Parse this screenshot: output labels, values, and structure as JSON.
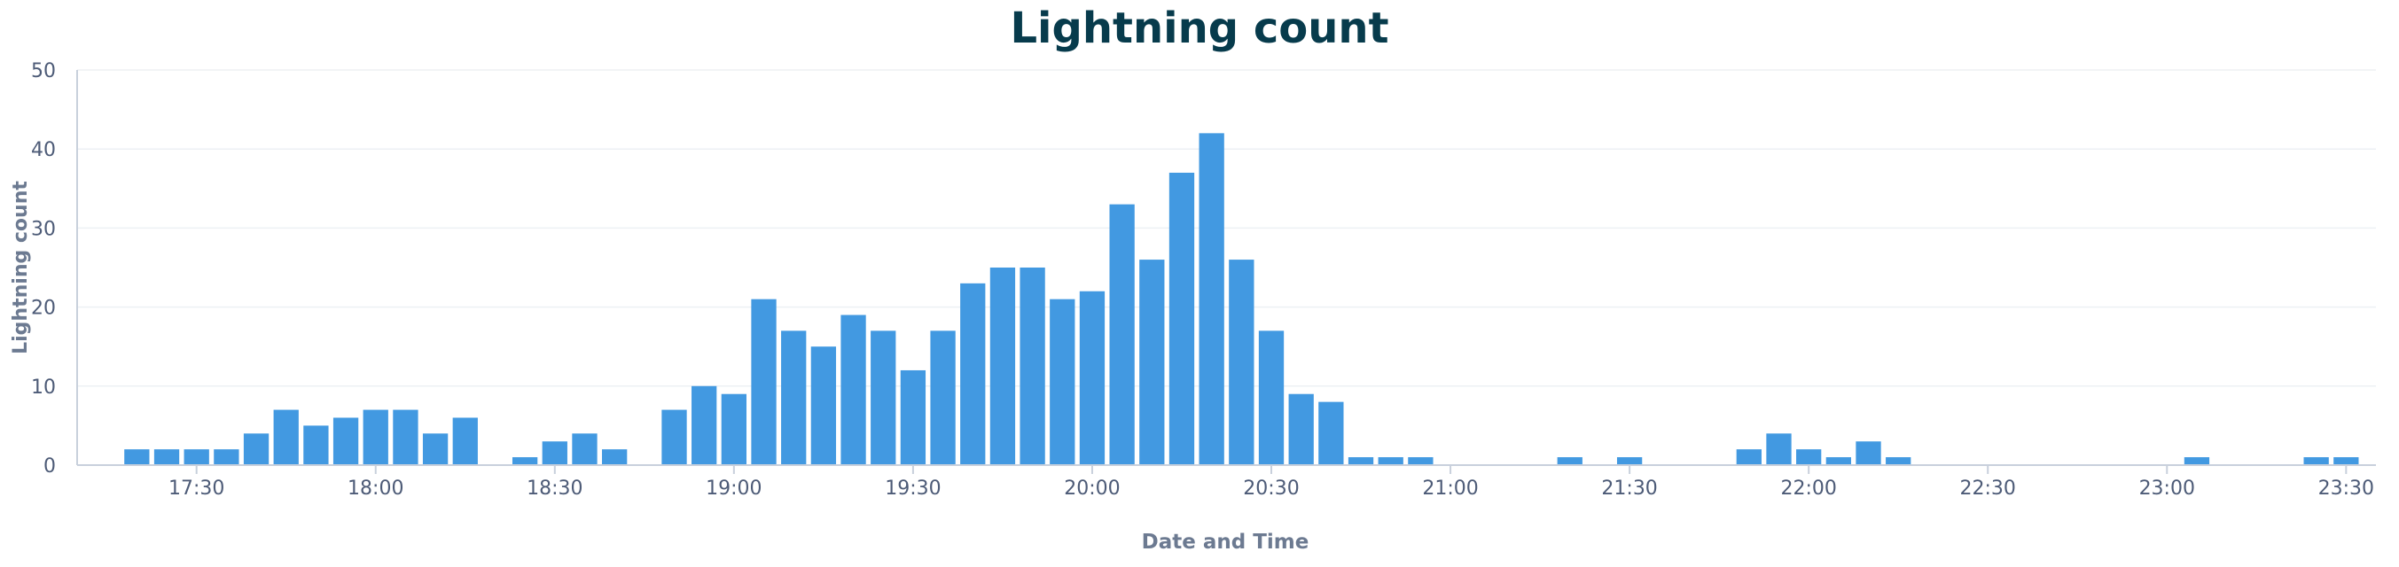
{
  "chart_data": {
    "type": "bar",
    "title": "Lightning count",
    "xlabel": "Date and Time",
    "ylabel": "Lightning count",
    "ylim": [
      0,
      50
    ],
    "yticks": [
      0,
      10,
      20,
      30,
      40,
      50
    ],
    "x_range": [
      "17:10",
      "23:35"
    ],
    "xticks": [
      "17:30",
      "18:00",
      "18:30",
      "19:00",
      "19:30",
      "20:00",
      "20:30",
      "21:00",
      "21:30",
      "22:00",
      "22:30",
      "23:00",
      "23:30"
    ],
    "grid": true,
    "legend": "none",
    "bar_color": "#4299e1",
    "title_color": "#073b4c",
    "series": [
      {
        "x": [
          "17:20",
          "17:25",
          "17:30",
          "17:35",
          "17:40",
          "17:45",
          "17:50",
          "17:55",
          "18:00",
          "18:05",
          "18:10",
          "18:15",
          "18:25",
          "18:30",
          "18:35",
          "18:40",
          "18:50",
          "18:55",
          "19:00",
          "19:05",
          "19:10",
          "19:15",
          "19:20",
          "19:25",
          "19:30",
          "19:35",
          "19:40",
          "19:45",
          "19:50",
          "19:55",
          "20:00",
          "20:05",
          "20:10",
          "20:15",
          "20:20",
          "20:25",
          "20:30",
          "20:35",
          "20:40",
          "20:45",
          "20:50",
          "20:55",
          "21:20",
          "21:30",
          "21:50",
          "21:55",
          "22:00",
          "22:05",
          "22:10",
          "22:15",
          "23:05",
          "23:25",
          "23:30"
        ],
        "values": [
          2,
          2,
          2,
          2,
          4,
          7,
          5,
          6,
          7,
          7,
          4,
          6,
          1,
          3,
          4,
          2,
          7,
          10,
          9,
          21,
          17,
          15,
          19,
          17,
          12,
          17,
          23,
          25,
          25,
          21,
          22,
          33,
          26,
          37,
          42,
          26,
          17,
          9,
          8,
          1,
          1,
          1,
          1,
          1,
          2,
          4,
          2,
          1,
          3,
          1,
          1,
          1,
          1
        ]
      }
    ]
  }
}
